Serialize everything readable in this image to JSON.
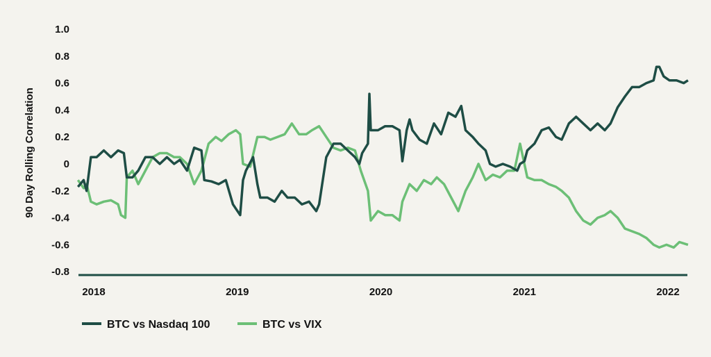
{
  "chart_data": {
    "type": "line",
    "title": "",
    "xlabel": "",
    "ylabel": "90 Day Rolling Correlation",
    "ylim": [
      -0.8,
      1.0
    ],
    "xlim": [
      2017.89,
      2022.14
    ],
    "yticks": [
      "1.0",
      "0.8",
      "0.6",
      "0.4",
      "0.2",
      "0",
      "-0.2",
      "-0.4",
      "-0.6",
      "-0.8"
    ],
    "ytick_values": [
      1.0,
      0.8,
      0.6,
      0.4,
      0.2,
      0,
      -0.2,
      -0.4,
      -0.6,
      -0.8
    ],
    "xticks": [
      "2018",
      "2019",
      "2020",
      "2021",
      "2022"
    ],
    "xtick_values": [
      2018,
      2019,
      2020,
      2021,
      2022
    ],
    "grid": false,
    "legend_placement": "bottom-left",
    "colors": {
      "nasdaq": "#1e4d45",
      "vix": "#6cbf76",
      "axis": "#1e4d45",
      "background": "#f4f3ee"
    },
    "series": [
      {
        "name": "BTC vs Nasdaq 100",
        "key": "nasdaq",
        "points": [
          [
            2017.89,
            -0.17
          ],
          [
            2017.93,
            -0.12
          ],
          [
            2017.95,
            -0.2
          ],
          [
            2017.98,
            0.05
          ],
          [
            2018.02,
            0.05
          ],
          [
            2018.07,
            0.1
          ],
          [
            2018.12,
            0.05
          ],
          [
            2018.17,
            0.1
          ],
          [
            2018.21,
            0.08
          ],
          [
            2018.23,
            -0.1
          ],
          [
            2018.27,
            -0.1
          ],
          [
            2018.31,
            -0.05
          ],
          [
            2018.36,
            0.05
          ],
          [
            2018.41,
            0.05
          ],
          [
            2018.46,
            0.0
          ],
          [
            2018.51,
            0.05
          ],
          [
            2018.56,
            0.0
          ],
          [
            2018.6,
            0.03
          ],
          [
            2018.65,
            -0.05
          ],
          [
            2018.7,
            0.12
          ],
          [
            2018.75,
            0.1
          ],
          [
            2018.77,
            -0.12
          ],
          [
            2018.82,
            -0.13
          ],
          [
            2018.87,
            -0.15
          ],
          [
            2018.92,
            -0.12
          ],
          [
            2018.97,
            -0.3
          ],
          [
            2019.02,
            -0.38
          ],
          [
            2019.04,
            -0.12
          ],
          [
            2019.06,
            -0.05
          ],
          [
            2019.11,
            0.05
          ],
          [
            2019.14,
            -0.15
          ],
          [
            2019.16,
            -0.25
          ],
          [
            2019.21,
            -0.25
          ],
          [
            2019.26,
            -0.28
          ],
          [
            2019.31,
            -0.2
          ],
          [
            2019.35,
            -0.25
          ],
          [
            2019.4,
            -0.25
          ],
          [
            2019.45,
            -0.3
          ],
          [
            2019.5,
            -0.28
          ],
          [
            2019.55,
            -0.35
          ],
          [
            2019.57,
            -0.3
          ],
          [
            2019.62,
            0.05
          ],
          [
            2019.67,
            0.15
          ],
          [
            2019.72,
            0.15
          ],
          [
            2019.77,
            0.1
          ],
          [
            2019.82,
            0.05
          ],
          [
            2019.85,
            0.0
          ],
          [
            2019.87,
            0.08
          ],
          [
            2019.91,
            0.15
          ],
          [
            2019.92,
            0.52
          ],
          [
            2019.93,
            0.25
          ],
          [
            2019.98,
            0.25
          ],
          [
            2020.03,
            0.28
          ],
          [
            2020.08,
            0.28
          ],
          [
            2020.13,
            0.25
          ],
          [
            2020.15,
            0.02
          ],
          [
            2020.18,
            0.25
          ],
          [
            2020.2,
            0.33
          ],
          [
            2020.22,
            0.25
          ],
          [
            2020.27,
            0.18
          ],
          [
            2020.32,
            0.15
          ],
          [
            2020.37,
            0.3
          ],
          [
            2020.42,
            0.22
          ],
          [
            2020.47,
            0.38
          ],
          [
            2020.52,
            0.35
          ],
          [
            2020.56,
            0.43
          ],
          [
            2020.59,
            0.25
          ],
          [
            2020.64,
            0.2
          ],
          [
            2020.68,
            0.15
          ],
          [
            2020.73,
            0.1
          ],
          [
            2020.76,
            0.0
          ],
          [
            2020.8,
            -0.02
          ],
          [
            2020.85,
            0.0
          ],
          [
            2020.9,
            -0.02
          ],
          [
            2020.95,
            -0.05
          ],
          [
            2020.97,
            0.0
          ],
          [
            2021.0,
            0.02
          ],
          [
            2021.02,
            0.1
          ],
          [
            2021.07,
            0.15
          ],
          [
            2021.12,
            0.25
          ],
          [
            2021.17,
            0.27
          ],
          [
            2021.22,
            0.2
          ],
          [
            2021.26,
            0.18
          ],
          [
            2021.31,
            0.3
          ],
          [
            2021.36,
            0.35
          ],
          [
            2021.41,
            0.3
          ],
          [
            2021.46,
            0.25
          ],
          [
            2021.51,
            0.3
          ],
          [
            2021.56,
            0.25
          ],
          [
            2021.6,
            0.3
          ],
          [
            2021.65,
            0.42
          ],
          [
            2021.7,
            0.5
          ],
          [
            2021.75,
            0.57
          ],
          [
            2021.8,
            0.57
          ],
          [
            2021.85,
            0.6
          ],
          [
            2021.9,
            0.62
          ],
          [
            2021.92,
            0.72
          ],
          [
            2021.94,
            0.72
          ],
          [
            2021.97,
            0.65
          ],
          [
            2022.01,
            0.62
          ],
          [
            2022.06,
            0.62
          ],
          [
            2022.11,
            0.6
          ],
          [
            2022.14,
            0.62
          ]
        ]
      },
      {
        "name": "BTC vs VIX",
        "key": "vix",
        "points": [
          [
            2017.89,
            -0.12
          ],
          [
            2017.93,
            -0.18
          ],
          [
            2017.95,
            -0.15
          ],
          [
            2017.98,
            -0.28
          ],
          [
            2018.02,
            -0.3
          ],
          [
            2018.07,
            -0.28
          ],
          [
            2018.12,
            -0.27
          ],
          [
            2018.17,
            -0.3
          ],
          [
            2018.19,
            -0.38
          ],
          [
            2018.22,
            -0.4
          ],
          [
            2018.23,
            -0.1
          ],
          [
            2018.27,
            -0.05
          ],
          [
            2018.31,
            -0.15
          ],
          [
            2018.36,
            -0.05
          ],
          [
            2018.41,
            0.05
          ],
          [
            2018.46,
            0.08
          ],
          [
            2018.51,
            0.08
          ],
          [
            2018.56,
            0.05
          ],
          [
            2018.6,
            0.05
          ],
          [
            2018.65,
            0.0
          ],
          [
            2018.7,
            -0.15
          ],
          [
            2018.75,
            -0.05
          ],
          [
            2018.8,
            0.15
          ],
          [
            2018.85,
            0.2
          ],
          [
            2018.89,
            0.17
          ],
          [
            2018.94,
            0.22
          ],
          [
            2018.99,
            0.25
          ],
          [
            2019.02,
            0.22
          ],
          [
            2019.04,
            0.0
          ],
          [
            2019.09,
            -0.02
          ],
          [
            2019.14,
            0.2
          ],
          [
            2019.19,
            0.2
          ],
          [
            2019.23,
            0.18
          ],
          [
            2019.28,
            0.2
          ],
          [
            2019.33,
            0.22
          ],
          [
            2019.38,
            0.3
          ],
          [
            2019.43,
            0.22
          ],
          [
            2019.48,
            0.22
          ],
          [
            2019.52,
            0.25
          ],
          [
            2019.57,
            0.28
          ],
          [
            2019.62,
            0.2
          ],
          [
            2019.67,
            0.12
          ],
          [
            2019.72,
            0.1
          ],
          [
            2019.77,
            0.12
          ],
          [
            2019.82,
            0.1
          ],
          [
            2019.86,
            -0.05
          ],
          [
            2019.91,
            -0.2
          ],
          [
            2019.93,
            -0.42
          ],
          [
            2019.98,
            -0.35
          ],
          [
            2020.03,
            -0.38
          ],
          [
            2020.08,
            -0.38
          ],
          [
            2020.13,
            -0.42
          ],
          [
            2020.15,
            -0.28
          ],
          [
            2020.2,
            -0.15
          ],
          [
            2020.25,
            -0.2
          ],
          [
            2020.3,
            -0.12
          ],
          [
            2020.35,
            -0.15
          ],
          [
            2020.39,
            -0.1
          ],
          [
            2020.44,
            -0.15
          ],
          [
            2020.49,
            -0.25
          ],
          [
            2020.54,
            -0.35
          ],
          [
            2020.59,
            -0.2
          ],
          [
            2020.64,
            -0.1
          ],
          [
            2020.68,
            0.0
          ],
          [
            2020.73,
            -0.12
          ],
          [
            2020.78,
            -0.08
          ],
          [
            2020.83,
            -0.1
          ],
          [
            2020.88,
            -0.05
          ],
          [
            2020.93,
            -0.05
          ],
          [
            2020.97,
            0.15
          ],
          [
            2021.02,
            -0.1
          ],
          [
            2021.07,
            -0.12
          ],
          [
            2021.12,
            -0.12
          ],
          [
            2021.17,
            -0.15
          ],
          [
            2021.22,
            -0.17
          ],
          [
            2021.26,
            -0.2
          ],
          [
            2021.31,
            -0.25
          ],
          [
            2021.36,
            -0.35
          ],
          [
            2021.41,
            -0.42
          ],
          [
            2021.46,
            -0.45
          ],
          [
            2021.51,
            -0.4
          ],
          [
            2021.56,
            -0.38
          ],
          [
            2021.6,
            -0.35
          ],
          [
            2021.65,
            -0.4
          ],
          [
            2021.7,
            -0.48
          ],
          [
            2021.75,
            -0.5
          ],
          [
            2021.8,
            -0.52
          ],
          [
            2021.85,
            -0.55
          ],
          [
            2021.9,
            -0.6
          ],
          [
            2021.94,
            -0.62
          ],
          [
            2021.99,
            -0.6
          ],
          [
            2022.04,
            -0.62
          ],
          [
            2022.08,
            -0.58
          ],
          [
            2022.14,
            -0.6
          ]
        ]
      }
    ]
  }
}
